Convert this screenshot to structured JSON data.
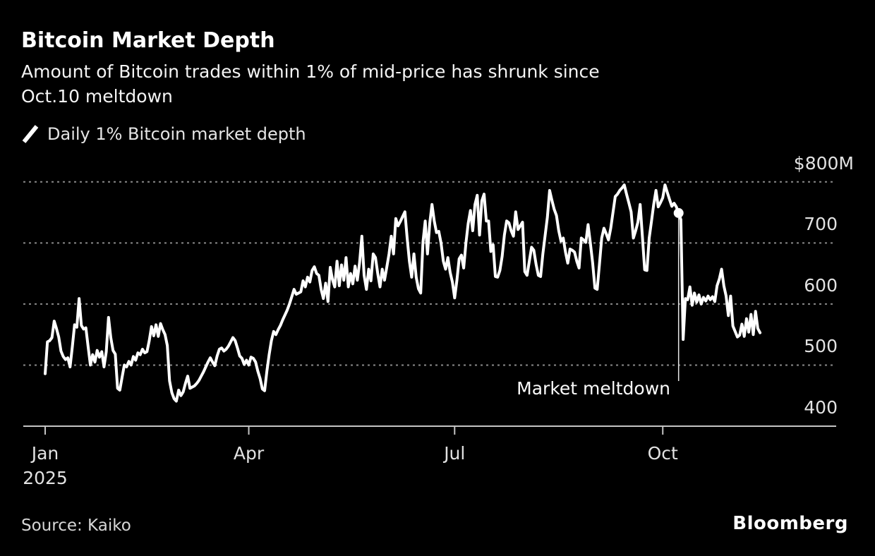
{
  "header": {
    "title": "Bitcoin Market Depth",
    "subtitle_line1": "Amount of Bitcoin trades within 1% of mid-price has shrunk since",
    "subtitle_line2": "Oct.10 meltdown"
  },
  "legend": {
    "series_label": "Daily 1% Bitcoin market depth"
  },
  "annotation": {
    "label": "Market meltdown"
  },
  "footer": {
    "source": "Source: Kaiko",
    "brand": "Bloomberg"
  },
  "colors": {
    "background": "#000000",
    "series_line": "#ffffff",
    "grid": "#8a8a8a",
    "axis": "#c4c4c4",
    "text_primary": "#ffffff",
    "text_secondary": "#e2e2e2",
    "annotation_line": "#e8e8e8"
  },
  "chart_data": {
    "type": "line",
    "title": "Bitcoin Market Depth",
    "series_name": "Daily 1% Bitcoin market depth",
    "unit": "$M",
    "ylim": [
      400,
      800
    ],
    "grid": "dotted-horizontal",
    "legend_position": "top-left",
    "y_ticks": [
      {
        "value": 800,
        "label": "$800M"
      },
      {
        "value": 700,
        "label": "700"
      },
      {
        "value": 600,
        "label": "600"
      },
      {
        "value": 500,
        "label": "500"
      },
      {
        "value": 400,
        "label": "400"
      }
    ],
    "x_ticks": [
      {
        "day_of_year": 1,
        "label": "Jan",
        "year_label": "2025"
      },
      {
        "day_of_year": 91,
        "label": "Apr"
      },
      {
        "day_of_year": 182,
        "label": "Jul"
      },
      {
        "day_of_year": 274,
        "label": "Oct"
      }
    ],
    "marker": {
      "day": 281,
      "value": 749
    },
    "annotation": {
      "label": "Market meltdown",
      "day": 281,
      "line_bottom_value": 474
    },
    "points": [
      [
        1,
        486
      ],
      [
        2,
        538
      ],
      [
        3,
        540
      ],
      [
        4,
        545
      ],
      [
        5,
        572
      ],
      [
        6,
        560
      ],
      [
        7,
        546
      ],
      [
        8,
        523
      ],
      [
        9,
        514
      ],
      [
        10,
        509
      ],
      [
        11,
        512
      ],
      [
        12,
        497
      ],
      [
        13,
        530
      ],
      [
        14,
        566
      ],
      [
        15,
        562
      ],
      [
        16,
        609
      ],
      [
        17,
        565
      ],
      [
        18,
        559
      ],
      [
        19,
        561
      ],
      [
        20,
        530
      ],
      [
        21,
        500
      ],
      [
        22,
        517
      ],
      [
        23,
        505
      ],
      [
        24,
        524
      ],
      [
        25,
        513
      ],
      [
        26,
        522
      ],
      [
        27,
        497
      ],
      [
        28,
        522
      ],
      [
        29,
        578
      ],
      [
        30,
        545
      ],
      [
        31,
        524
      ],
      [
        32,
        518
      ],
      [
        33,
        462
      ],
      [
        34,
        459
      ],
      [
        35,
        480
      ],
      [
        36,
        500
      ],
      [
        37,
        497
      ],
      [
        38,
        506
      ],
      [
        39,
        500
      ],
      [
        40,
        514
      ],
      [
        41,
        508
      ],
      [
        42,
        520
      ],
      [
        43,
        517
      ],
      [
        44,
        526
      ],
      [
        45,
        520
      ],
      [
        46,
        522
      ],
      [
        47,
        540
      ],
      [
        48,
        563
      ],
      [
        49,
        548
      ],
      [
        50,
        566
      ],
      [
        51,
        547
      ],
      [
        52,
        568
      ],
      [
        53,
        558
      ],
      [
        54,
        550
      ],
      [
        55,
        532
      ],
      [
        56,
        474
      ],
      [
        57,
        455
      ],
      [
        58,
        445
      ],
      [
        59,
        441
      ],
      [
        60,
        459
      ],
      [
        61,
        450
      ],
      [
        62,
        456
      ],
      [
        63,
        470
      ],
      [
        64,
        482
      ],
      [
        65,
        462
      ],
      [
        66,
        464
      ],
      [
        67,
        466
      ],
      [
        68,
        470
      ],
      [
        69,
        475
      ],
      [
        70,
        482
      ],
      [
        71,
        489
      ],
      [
        72,
        497
      ],
      [
        73,
        505
      ],
      [
        74,
        512
      ],
      [
        75,
        505
      ],
      [
        76,
        499
      ],
      [
        77,
        515
      ],
      [
        78,
        526
      ],
      [
        79,
        528
      ],
      [
        80,
        523
      ],
      [
        81,
        526
      ],
      [
        82,
        531
      ],
      [
        83,
        538
      ],
      [
        84,
        545
      ],
      [
        85,
        540
      ],
      [
        86,
        528
      ],
      [
        87,
        515
      ],
      [
        88,
        511
      ],
      [
        89,
        501
      ],
      [
        90,
        508
      ],
      [
        91,
        500
      ],
      [
        92,
        513
      ],
      [
        93,
        511
      ],
      [
        94,
        505
      ],
      [
        95,
        490
      ],
      [
        96,
        478
      ],
      [
        97,
        461
      ],
      [
        98,
        458
      ],
      [
        99,
        490
      ],
      [
        100,
        517
      ],
      [
        101,
        540
      ],
      [
        102,
        555
      ],
      [
        103,
        550
      ],
      [
        104,
        558
      ],
      [
        105,
        565
      ],
      [
        106,
        574
      ],
      [
        107,
        582
      ],
      [
        108,
        590
      ],
      [
        109,
        600
      ],
      [
        110,
        612
      ],
      [
        111,
        624
      ],
      [
        112,
        616
      ],
      [
        113,
        618
      ],
      [
        114,
        620
      ],
      [
        115,
        638
      ],
      [
        116,
        628
      ],
      [
        117,
        644
      ],
      [
        118,
        636
      ],
      [
        119,
        655
      ],
      [
        120,
        661
      ],
      [
        121,
        650
      ],
      [
        122,
        647
      ],
      [
        123,
        624
      ],
      [
        124,
        609
      ],
      [
        125,
        634
      ],
      [
        126,
        604
      ],
      [
        127,
        660
      ],
      [
        128,
        640
      ],
      [
        129,
        628
      ],
      [
        130,
        670
      ],
      [
        131,
        630
      ],
      [
        132,
        664
      ],
      [
        133,
        639
      ],
      [
        134,
        676
      ],
      [
        135,
        628
      ],
      [
        136,
        650
      ],
      [
        137,
        633
      ],
      [
        138,
        662
      ],
      [
        139,
        639
      ],
      [
        140,
        668
      ],
      [
        141,
        711
      ],
      [
        142,
        647
      ],
      [
        143,
        624
      ],
      [
        144,
        657
      ],
      [
        145,
        638
      ],
      [
        146,
        682
      ],
      [
        147,
        676
      ],
      [
        148,
        650
      ],
      [
        149,
        628
      ],
      [
        150,
        657
      ],
      [
        151,
        639
      ],
      [
        152,
        660
      ],
      [
        153,
        682
      ],
      [
        154,
        711
      ],
      [
        155,
        682
      ],
      [
        156,
        740
      ],
      [
        157,
        728
      ],
      [
        158,
        735
      ],
      [
        159,
        743
      ],
      [
        160,
        751
      ],
      [
        161,
        708
      ],
      [
        162,
        670
      ],
      [
        163,
        644
      ],
      [
        164,
        682
      ],
      [
        165,
        644
      ],
      [
        166,
        625
      ],
      [
        167,
        618
      ],
      [
        168,
        701
      ],
      [
        169,
        736
      ],
      [
        170,
        682
      ],
      [
        171,
        732
      ],
      [
        172,
        763
      ],
      [
        173,
        736
      ],
      [
        174,
        717
      ],
      [
        175,
        719
      ],
      [
        176,
        700
      ],
      [
        177,
        670
      ],
      [
        178,
        657
      ],
      [
        179,
        676
      ],
      [
        180,
        652
      ],
      [
        181,
        636
      ],
      [
        182,
        610
      ],
      [
        183,
        639
      ],
      [
        184,
        674
      ],
      [
        185,
        680
      ],
      [
        186,
        659
      ],
      [
        187,
        700
      ],
      [
        188,
        732
      ],
      [
        189,
        753
      ],
      [
        190,
        720
      ],
      [
        191,
        763
      ],
      [
        192,
        778
      ],
      [
        193,
        713
      ],
      [
        194,
        769
      ],
      [
        195,
        780
      ],
      [
        196,
        736
      ],
      [
        197,
        736
      ],
      [
        198,
        686
      ],
      [
        199,
        697
      ],
      [
        200,
        645
      ],
      [
        201,
        644
      ],
      [
        202,
        655
      ],
      [
        203,
        678
      ],
      [
        204,
        713
      ],
      [
        205,
        736
      ],
      [
        206,
        733
      ],
      [
        207,
        720
      ],
      [
        208,
        711
      ],
      [
        209,
        751
      ],
      [
        210,
        722
      ],
      [
        211,
        728
      ],
      [
        212,
        734
      ],
      [
        213,
        653
      ],
      [
        214,
        647
      ],
      [
        215,
        670
      ],
      [
        216,
        693
      ],
      [
        217,
        688
      ],
      [
        218,
        665
      ],
      [
        219,
        647
      ],
      [
        220,
        645
      ],
      [
        221,
        682
      ],
      [
        222,
        712
      ],
      [
        223,
        742
      ],
      [
        224,
        786
      ],
      [
        225,
        770
      ],
      [
        226,
        755
      ],
      [
        227,
        745
      ],
      [
        228,
        720
      ],
      [
        229,
        703
      ],
      [
        230,
        708
      ],
      [
        231,
        685
      ],
      [
        232,
        667
      ],
      [
        233,
        690
      ],
      [
        234,
        688
      ],
      [
        235,
        685
      ],
      [
        236,
        670
      ],
      [
        237,
        659
      ],
      [
        238,
        708
      ],
      [
        239,
        705
      ],
      [
        240,
        701
      ],
      [
        241,
        730
      ],
      [
        242,
        700
      ],
      [
        243,
        667
      ],
      [
        244,
        626
      ],
      [
        245,
        624
      ],
      [
        246,
        665
      ],
      [
        247,
        708
      ],
      [
        248,
        724
      ],
      [
        249,
        715
      ],
      [
        250,
        705
      ],
      [
        251,
        724
      ],
      [
        252,
        750
      ],
      [
        253,
        776
      ],
      [
        254,
        780
      ],
      [
        255,
        786
      ],
      [
        256,
        790
      ],
      [
        257,
        795
      ],
      [
        258,
        780
      ],
      [
        259,
        766
      ],
      [
        260,
        751
      ],
      [
        261,
        708
      ],
      [
        262,
        720
      ],
      [
        263,
        734
      ],
      [
        264,
        763
      ],
      [
        265,
        710
      ],
      [
        266,
        656
      ],
      [
        267,
        655
      ],
      [
        268,
        708
      ],
      [
        269,
        735
      ],
      [
        270,
        763
      ],
      [
        271,
        786
      ],
      [
        272,
        759
      ],
      [
        273,
        766
      ],
      [
        274,
        774
      ],
      [
        275,
        795
      ],
      [
        276,
        783
      ],
      [
        277,
        771
      ],
      [
        278,
        760
      ],
      [
        279,
        765
      ],
      [
        280,
        759
      ],
      [
        281,
        749
      ],
      [
        282,
        738
      ],
      [
        283,
        542
      ],
      [
        284,
        609
      ],
      [
        285,
        607
      ],
      [
        286,
        628
      ],
      [
        287,
        598
      ],
      [
        288,
        618
      ],
      [
        289,
        603
      ],
      [
        290,
        615
      ],
      [
        291,
        600
      ],
      [
        292,
        611
      ],
      [
        293,
        605
      ],
      [
        294,
        613
      ],
      [
        295,
        607
      ],
      [
        296,
        612
      ],
      [
        297,
        604
      ],
      [
        298,
        630
      ],
      [
        299,
        641
      ],
      [
        300,
        657
      ],
      [
        301,
        630
      ],
      [
        302,
        613
      ],
      [
        303,
        581
      ],
      [
        304,
        613
      ],
      [
        305,
        564
      ],
      [
        306,
        555
      ],
      [
        307,
        546
      ],
      [
        308,
        549
      ],
      [
        309,
        567
      ],
      [
        310,
        547
      ],
      [
        311,
        576
      ],
      [
        312,
        554
      ],
      [
        313,
        583
      ],
      [
        314,
        550
      ],
      [
        315,
        588
      ],
      [
        316,
        560
      ],
      [
        317,
        553
      ]
    ]
  }
}
